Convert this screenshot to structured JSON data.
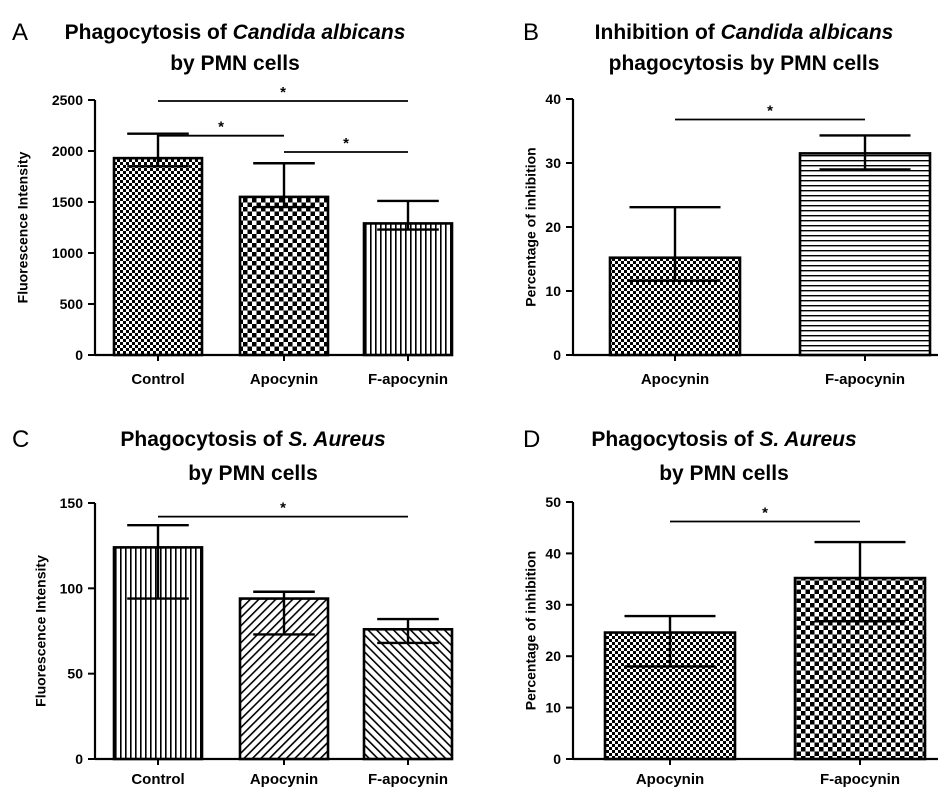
{
  "chart_data": [
    {
      "type": "bar",
      "panel_letter": "A",
      "title_lines": [
        [
          {
            "text": "Phagocytosis of "
          },
          {
            "text": "Candida albicans",
            "italic": true
          }
        ],
        [
          {
            "text": "by PMN cells"
          }
        ]
      ],
      "ylabel": "Fluorescence Intensity",
      "xlabel": "",
      "ylim": [
        0,
        2500
      ],
      "yticks": [
        0,
        500,
        1000,
        1500,
        2000,
        2500
      ],
      "categories": [
        "Control",
        "Apocynin",
        "F-apocynin"
      ],
      "values": [
        1930,
        1550,
        1290
      ],
      "error_upper": [
        2170,
        1880,
        1510
      ],
      "error_lower": [
        1850,
        1450,
        1230
      ],
      "patterns": [
        "checker",
        "checker-large",
        "vertical"
      ],
      "significance": [
        {
          "from": 0,
          "to": 1,
          "y": 2150,
          "label": "*"
        },
        {
          "from": 0,
          "to": 2,
          "y": 2490,
          "label": "*"
        },
        {
          "from": 1,
          "to": 2,
          "y": 1990,
          "label": "*"
        }
      ]
    },
    {
      "type": "bar",
      "panel_letter": "B",
      "title_lines": [
        [
          {
            "text": "Inhibition of "
          },
          {
            "text": "Candida albicans",
            "italic": true
          }
        ],
        [
          {
            "text": "phagocytosis by PMN cells"
          }
        ]
      ],
      "ylabel": "Percentage of inhibition",
      "xlabel": "",
      "ylim": [
        0,
        40
      ],
      "yticks": [
        0,
        10,
        20,
        30,
        40
      ],
      "categories": [
        "Apocynin",
        "F-apocynin"
      ],
      "values": [
        15.2,
        31.5
      ],
      "error_upper": [
        23.1,
        34.3
      ],
      "error_lower": [
        11.6,
        29.0
      ],
      "patterns": [
        "checker",
        "horizontal"
      ],
      "significance": [
        {
          "from": 0,
          "to": 1,
          "y": 36.8,
          "label": "*"
        }
      ]
    },
    {
      "type": "bar",
      "panel_letter": "C",
      "title_lines": [
        [
          {
            "text": "Phagocytosis of "
          },
          {
            "text": "S. Aureus",
            "italic": true
          }
        ],
        [
          {
            "text": "by PMN cells"
          }
        ]
      ],
      "ylabel": "Fluorescence Intensity",
      "xlabel": "",
      "ylim": [
        0,
        150
      ],
      "yticks": [
        0,
        50,
        100,
        150
      ],
      "categories": [
        "Control",
        "Apocynin",
        "F-apocynin"
      ],
      "values": [
        124,
        94,
        76
      ],
      "error_upper": [
        137,
        98,
        82
      ],
      "error_lower": [
        94,
        73,
        68
      ],
      "patterns": [
        "vertical",
        "diagonal",
        "diagonal-back"
      ],
      "significance": [
        {
          "from": 0,
          "to": 2,
          "y": 142,
          "label": "*"
        }
      ]
    },
    {
      "type": "bar",
      "panel_letter": "D",
      "title_lines": [
        [
          {
            "text": "Phagocytosis of "
          },
          {
            "text": "S. Aureus",
            "italic": true
          }
        ],
        [
          {
            "text": "by PMN cells"
          }
        ]
      ],
      "ylabel": "Percentage of inhibition",
      "xlabel": "",
      "ylim": [
        0,
        50
      ],
      "yticks": [
        0,
        10,
        20,
        30,
        40,
        50
      ],
      "categories": [
        "Apocynin",
        "F-apocynin"
      ],
      "values": [
        24.6,
        35.2
      ],
      "error_upper": [
        27.8,
        42.2
      ],
      "error_lower": [
        18.0,
        26.8
      ],
      "patterns": [
        "checker",
        "checker-large"
      ],
      "significance": [
        {
          "from": 0,
          "to": 1,
          "y": 46.2,
          "label": "*"
        }
      ]
    }
  ]
}
